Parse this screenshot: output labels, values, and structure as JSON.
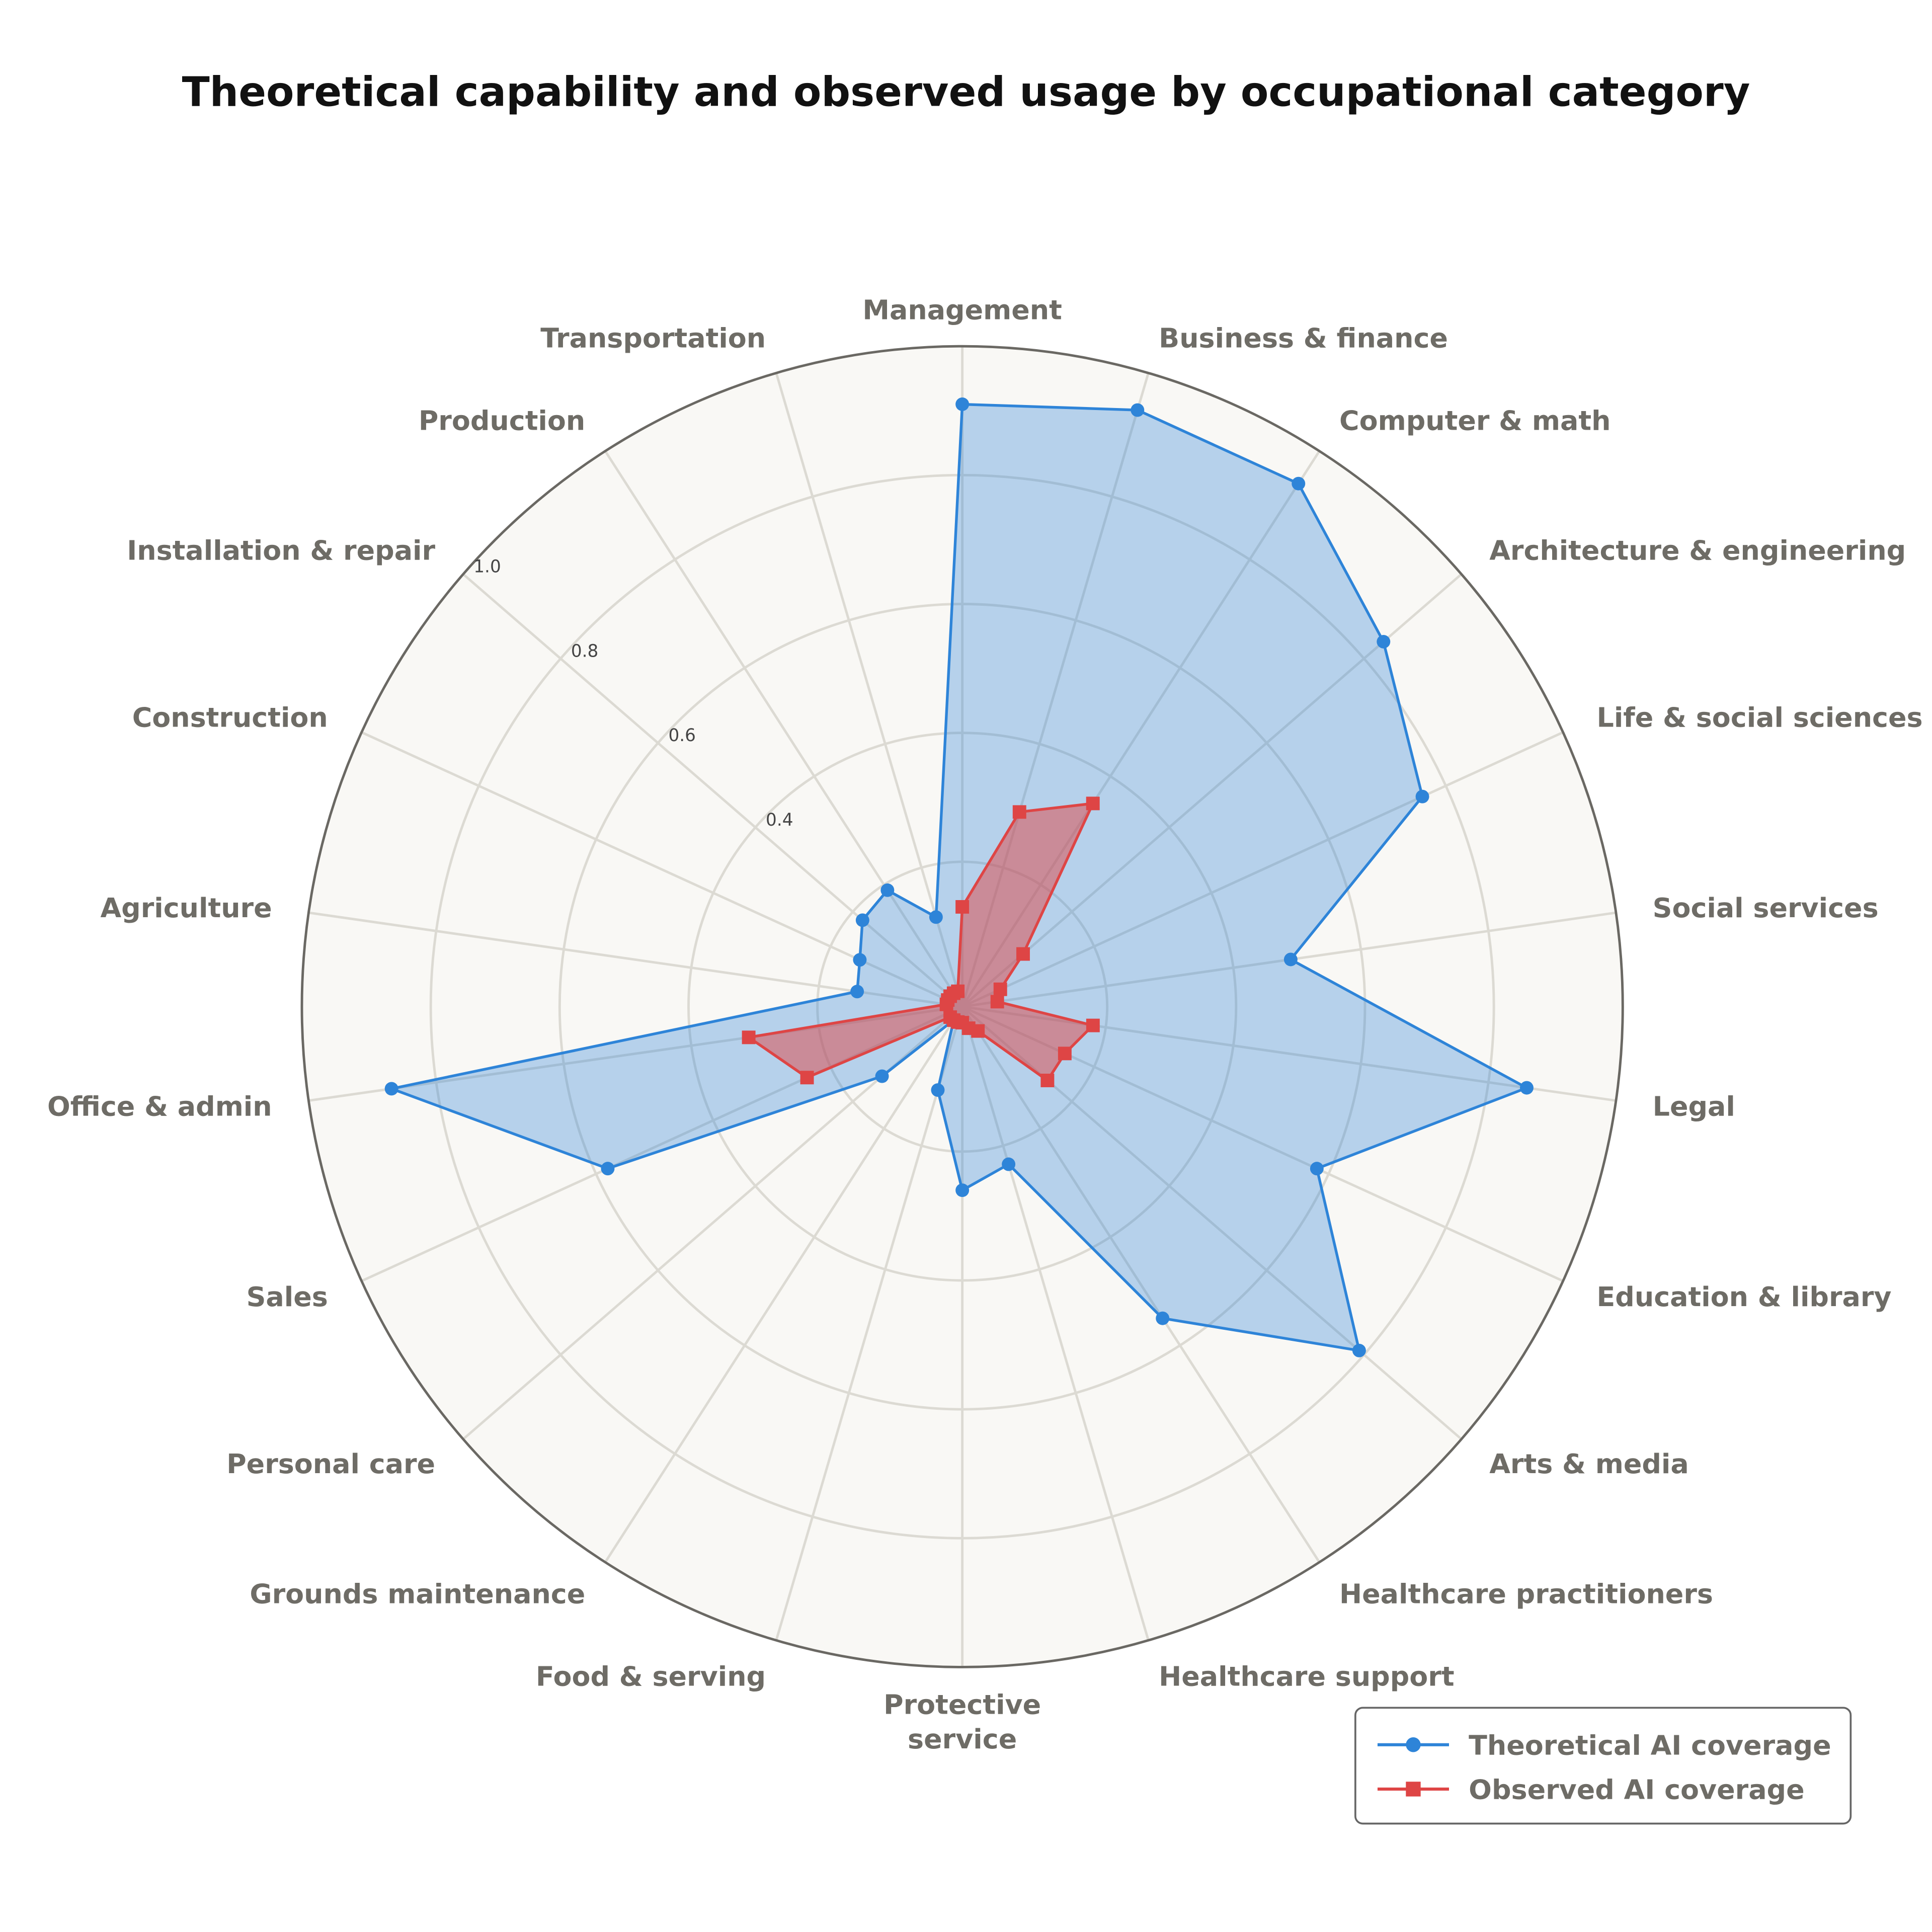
{
  "chart_data": {
    "type": "radar",
    "title": "Theoretical capability and observed usage by occupational category",
    "categories": [
      "Management",
      "Business & finance",
      "Computer & math",
      "Architecture & engineering",
      "Life & social sciences",
      "Social services",
      "Legal",
      "Education & library",
      "Arts & media",
      "Healthcare practitioners",
      "Healthcare support",
      "Protective service",
      "Food & serving",
      "Grounds maintenance",
      "Personal care",
      "Sales",
      "Office & admin",
      "Agriculture",
      "Construction",
      "Installation & repair",
      "Production",
      "Transportation"
    ],
    "rlim": [
      0,
      1.0
    ],
    "rticks": [
      0.4,
      0.6,
      0.8,
      1.0
    ],
    "rtick_labels": [
      "0.4",
      "0.6",
      "0.8",
      "1.0"
    ],
    "grid": true,
    "legend_position": "bottom-right",
    "series": [
      {
        "name": "Theoretical AI coverage",
        "color": "#2e84d8",
        "marker": "circle",
        "values": [
          0.91,
          0.94,
          0.94,
          0.84,
          0.76,
          0.49,
          0.86,
          0.58,
          0.79,
          0.55,
          0.23,
          0.26,
          0.11,
          0.0,
          0.14,
          0.58,
          0.87,
          0.14,
          0.15,
          0.18,
          0.19,
          0.12
        ]
      },
      {
        "name": "Observed AI coverage",
        "color": "#de4545",
        "marker": "square",
        "values": [
          0.13,
          0.29,
          0.35,
          0.1,
          0.04,
          0.03,
          0.18,
          0.15,
          0.15,
          0.02,
          0.01,
          0.0,
          0.0,
          0.0,
          0.0,
          0.24,
          0.31,
          0.0,
          0.0,
          0.0,
          0.0,
          0.0
        ]
      }
    ]
  }
}
